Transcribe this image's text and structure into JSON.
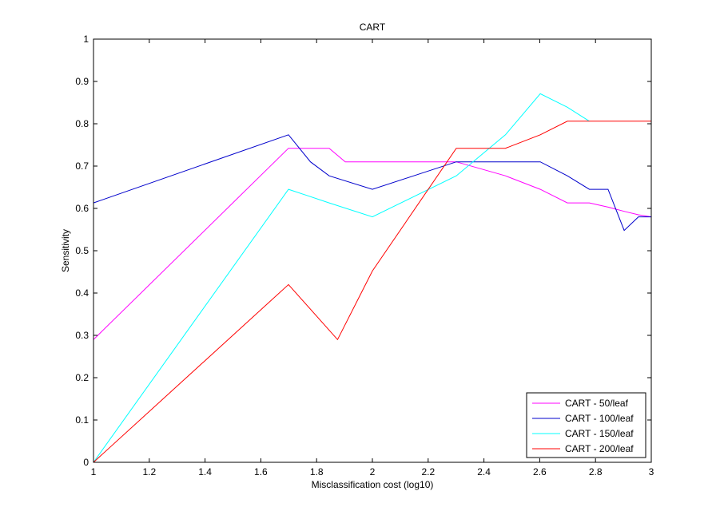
{
  "chart_data": {
    "type": "line",
    "title": "CART",
    "xlabel": "Misclassification cost (log10)",
    "ylabel": "Sensitivity",
    "xlim": [
      1,
      3
    ],
    "ylim": [
      0,
      1
    ],
    "xticks": [
      "1",
      "1.2",
      "1.4",
      "1.6",
      "1.8",
      "2",
      "2.2",
      "2.4",
      "2.6",
      "2.8",
      "3"
    ],
    "yticks": [
      "0",
      "0.1",
      "0.2",
      "0.3",
      "0.4",
      "0.5",
      "0.6",
      "0.7",
      "0.8",
      "0.9",
      "1"
    ],
    "xtick_values": [
      1,
      1.2,
      1.4,
      1.6,
      1.8,
      2,
      2.2,
      2.4,
      2.6,
      2.8,
      3
    ],
    "ytick_values": [
      0,
      0.1,
      0.2,
      0.3,
      0.4,
      0.5,
      0.6,
      0.7,
      0.8,
      0.9,
      1
    ],
    "grid": false,
    "legend_position": "bottom-right",
    "series": [
      {
        "name": "CART - 50/leaf",
        "color": "#ff00ff",
        "x": [
          1,
          1.699,
          1.778,
          1.845,
          1.903,
          2,
          2.301,
          2.477,
          2.602,
          2.699,
          2.778,
          2.845,
          2.903,
          2.954,
          3
        ],
        "y": [
          0.29,
          0.742,
          0.742,
          0.742,
          0.71,
          0.71,
          0.71,
          0.677,
          0.645,
          0.613,
          0.613,
          0.603,
          0.593,
          0.585,
          0.58
        ]
      },
      {
        "name": "CART - 100/leaf",
        "color": "#0000cc",
        "x": [
          1,
          1.699,
          1.778,
          1.845,
          2,
          2.301,
          2.477,
          2.602,
          2.699,
          2.778,
          2.845,
          2.903,
          2.954,
          3
        ],
        "y": [
          0.613,
          0.774,
          0.71,
          0.677,
          0.645,
          0.71,
          0.71,
          0.71,
          0.677,
          0.645,
          0.645,
          0.548,
          0.58,
          0.58
        ]
      },
      {
        "name": "CART - 150/leaf",
        "color": "#00ffff",
        "x": [
          1,
          1.699,
          1.845,
          2,
          2.301,
          2.477,
          2.602,
          2.699,
          2.778
        ],
        "y": [
          0,
          0.645,
          0.613,
          0.58,
          0.677,
          0.774,
          0.871,
          0.839,
          0.806
        ]
      },
      {
        "name": "CART - 200/leaf",
        "color": "#ff0000",
        "x": [
          1,
          1.699,
          1.875,
          2,
          2.301,
          2.477,
          2.602,
          2.699,
          2.778,
          2.903,
          3
        ],
        "y": [
          0,
          0.42,
          0.29,
          0.452,
          0.742,
          0.742,
          0.774,
          0.806,
          0.806,
          0.806,
          0.806
        ]
      }
    ]
  }
}
